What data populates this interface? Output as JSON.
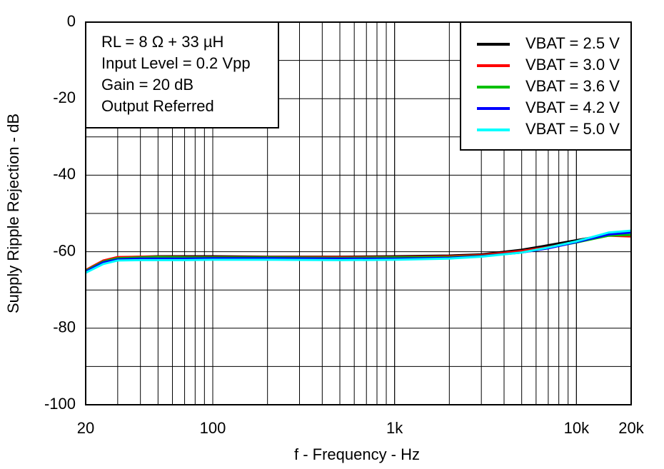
{
  "chart_data": {
    "type": "line",
    "xlabel": "f - Frequency - Hz",
    "ylabel": "Supply Ripple Rejection - dB",
    "xscale": "log",
    "xlim": [
      20,
      20000
    ],
    "ylim": [
      -100,
      0
    ],
    "xticks": [
      20,
      100,
      {
        "value": 1000,
        "label": "1k"
      },
      {
        "value": 10000,
        "label": "10k"
      },
      {
        "value": 20000,
        "label": "20k"
      }
    ],
    "yticks": [
      0,
      -20,
      -40,
      -60,
      -80,
      -100
    ],
    "grid": true,
    "legend": "upper right",
    "annotation": [
      "RL = 8 Ω + 33 µH",
      "Input Level = 0.2 Vpp",
      "Gain = 20 dB",
      "Output Referred"
    ],
    "x": [
      20,
      25,
      30,
      40,
      50,
      70,
      100,
      200,
      500,
      1000,
      2000,
      3000,
      5000,
      7000,
      10000,
      15000,
      20000
    ],
    "series": [
      {
        "name": "VBAT = 2.5 V",
        "color": "#000000",
        "values": [
          -65,
          -62.5,
          -61.5,
          -61.3,
          -61.2,
          -61.2,
          -61.2,
          -61.3,
          -61.3,
          -61.2,
          -61,
          -60.7,
          -59.5,
          -58.3,
          -57,
          -55.5,
          -55.8
        ]
      },
      {
        "name": "VBAT = 3.0 V",
        "color": "#ff0000",
        "values": [
          -64.8,
          -62.3,
          -61.4,
          -61.3,
          -61.3,
          -61.4,
          -61.4,
          -61.4,
          -61.4,
          -61.4,
          -61.2,
          -60.9,
          -59.8,
          -58.8,
          -57.4,
          -55.8,
          -56
        ]
      },
      {
        "name": "VBAT = 3.6 V",
        "color": "#00c000",
        "values": [
          -65,
          -62.6,
          -61.7,
          -61.5,
          -61.4,
          -61.5,
          -61.5,
          -61.5,
          -61.6,
          -61.5,
          -61.4,
          -61.1,
          -60.2,
          -59,
          -57.6,
          -55.8,
          -55.6
        ]
      },
      {
        "name": "VBAT = 4.2 V",
        "color": "#0000ff",
        "values": [
          -65.2,
          -62.8,
          -62,
          -61.8,
          -61.8,
          -61.8,
          -61.7,
          -61.7,
          -61.8,
          -61.8,
          -61.6,
          -61.2,
          -60.2,
          -59.1,
          -57.5,
          -55.5,
          -55
        ]
      },
      {
        "name": "VBAT = 5.0 V",
        "color": "#00ffff",
        "values": [
          -65.5,
          -63.2,
          -62.3,
          -62.2,
          -62.2,
          -62.2,
          -62.1,
          -62.1,
          -62.2,
          -62.1,
          -61.8,
          -61.3,
          -60.2,
          -58.9,
          -57.3,
          -55,
          -54.5
        ]
      }
    ]
  }
}
